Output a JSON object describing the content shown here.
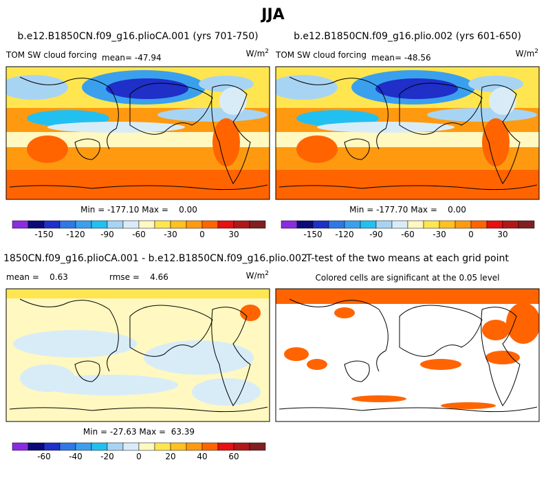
{
  "title": "JJA",
  "panels": [
    {
      "title": "b.e12.B1850CN.f09_g16.plioCA.001 (yrs 701-750)",
      "label": "TOM SW cloud forcing",
      "mean": "mean= -47.94",
      "units": "W/m",
      "units_exp": "2"
    },
    {
      "title": "b.e12.B1850CN.f09_g16.plio.002 (yrs 601-650)",
      "label": "TOM SW cloud forcing",
      "mean": "mean= -48.56",
      "units": "W/m",
      "units_exp": "2"
    },
    {
      "title": "1850CN.f09_g16.plioCA.001 - b.e12.B1850CN.f09_g16.plio.002",
      "label": "mean =    0.63",
      "mean": "rmse =    4.66",
      "units": "W/m",
      "units_exp": "2"
    },
    {
      "title": "T-test of the two means at each grid point",
      "label": "Colored cells are significant at the 0.05 level"
    }
  ],
  "colorbars": [
    {
      "stats": "Min = -177.10 Max =    0.00",
      "labels": [
        "-150",
        "-120",
        "-90",
        "-60",
        "-30",
        "0",
        "30"
      ]
    },
    {
      "stats": "Min = -177.70 Max =    0.00",
      "labels": [
        "-150",
        "-120",
        "-90",
        "-60",
        "-30",
        "0",
        "30"
      ]
    },
    {
      "stats": "Min = -27.63 Max =  63.39",
      "labels": [
        "-60",
        "-40",
        "-20",
        "0",
        "20",
        "40",
        "60"
      ]
    }
  ]
}
